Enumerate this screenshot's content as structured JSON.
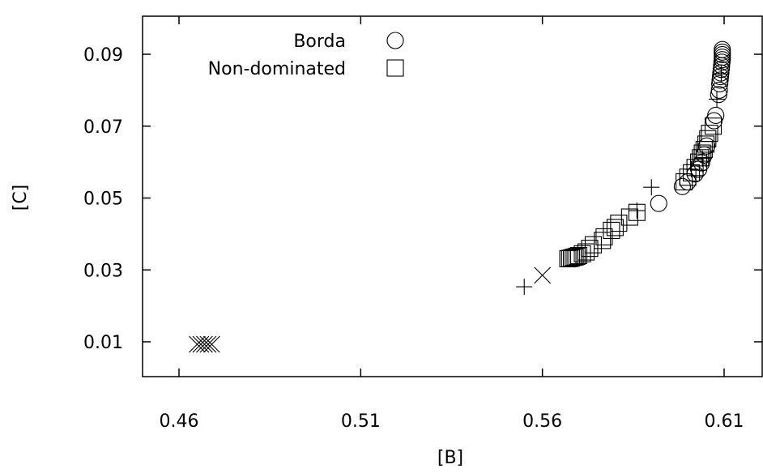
{
  "chart_data": {
    "type": "scatter",
    "xlabel": "[B]",
    "ylabel": "[C]",
    "xlim": [
      0.45,
      0.615
    ],
    "ylim": [
      -0.0,
      0.1
    ],
    "xticks": [
      "0.46",
      "0.51",
      "0.56",
      "0.61"
    ],
    "yticks": [
      "0.01",
      "0.03",
      "0.05",
      "0.07",
      "0.09"
    ],
    "grid": false,
    "legend_position": "top-center",
    "legend": [
      {
        "label": "Borda",
        "marker": "circle"
      },
      {
        "label": "Non-dominated",
        "marker": "square"
      }
    ],
    "series": [
      {
        "name": "Borda",
        "marker": "circle",
        "points": [
          [
            0.6095,
            0.0913
          ],
          [
            0.6095,
            0.0906
          ],
          [
            0.6095,
            0.0899
          ],
          [
            0.6095,
            0.0892
          ],
          [
            0.6095,
            0.0885
          ],
          [
            0.6094,
            0.0878
          ],
          [
            0.6093,
            0.0868
          ],
          [
            0.6092,
            0.0858
          ],
          [
            0.6091,
            0.0848
          ],
          [
            0.609,
            0.0838
          ],
          [
            0.6089,
            0.0828
          ],
          [
            0.6088,
            0.0818
          ],
          [
            0.6087,
            0.08
          ],
          [
            0.6085,
            0.0788
          ],
          [
            0.6077,
            0.073
          ],
          [
            0.6072,
            0.0715
          ],
          [
            0.6052,
            0.0645
          ],
          [
            0.6045,
            0.062
          ],
          [
            0.6038,
            0.0598
          ],
          [
            0.603,
            0.058
          ],
          [
            0.602,
            0.0567
          ],
          [
            0.6,
            0.0545
          ],
          [
            0.5985,
            0.0532
          ],
          [
            0.592,
            0.0485
          ]
        ]
      },
      {
        "name": "Non-dominated",
        "marker": "square",
        "points": [
          [
            0.607,
            0.07
          ],
          [
            0.606,
            0.068
          ],
          [
            0.6055,
            0.0665
          ],
          [
            0.605,
            0.065
          ],
          [
            0.6045,
            0.0635
          ],
          [
            0.604,
            0.0625
          ],
          [
            0.6035,
            0.0612
          ],
          [
            0.603,
            0.06
          ],
          [
            0.602,
            0.0585
          ],
          [
            0.601,
            0.057
          ],
          [
            0.6,
            0.0558
          ],
          [
            0.599,
            0.0545
          ],
          [
            0.586,
            0.046
          ],
          [
            0.584,
            0.0447
          ],
          [
            0.581,
            0.043
          ],
          [
            0.58,
            0.0418
          ],
          [
            0.579,
            0.041
          ],
          [
            0.577,
            0.0392
          ],
          [
            0.5765,
            0.0382
          ],
          [
            0.574,
            0.037
          ],
          [
            0.573,
            0.036
          ],
          [
            0.572,
            0.035
          ],
          [
            0.571,
            0.0345
          ],
          [
            0.57,
            0.034
          ],
          [
            0.5695,
            0.0338
          ],
          [
            0.569,
            0.0336
          ],
          [
            0.5685,
            0.0335
          ],
          [
            0.568,
            0.0333
          ],
          [
            0.5675,
            0.0332
          ],
          [
            0.567,
            0.0331
          ]
        ]
      },
      {
        "name": "",
        "marker": "plus",
        "points": [
          [
            0.555,
            0.0253
          ],
          [
            0.59,
            0.053
          ],
          [
            0.586,
            0.0465
          ],
          [
            0.608,
            0.0775
          ],
          [
            0.601,
            0.058
          ],
          [
            0.604,
            0.061
          ],
          [
            0.6092,
            0.0845
          ]
        ]
      },
      {
        "name": "",
        "marker": "cross",
        "points": [
          [
            0.56,
            0.0285
          ],
          [
            0.465,
            0.0093
          ],
          [
            0.466,
            0.0093
          ],
          [
            0.467,
            0.0093
          ],
          [
            0.468,
            0.0093
          ],
          [
            0.469,
            0.0093
          ]
        ]
      }
    ]
  }
}
